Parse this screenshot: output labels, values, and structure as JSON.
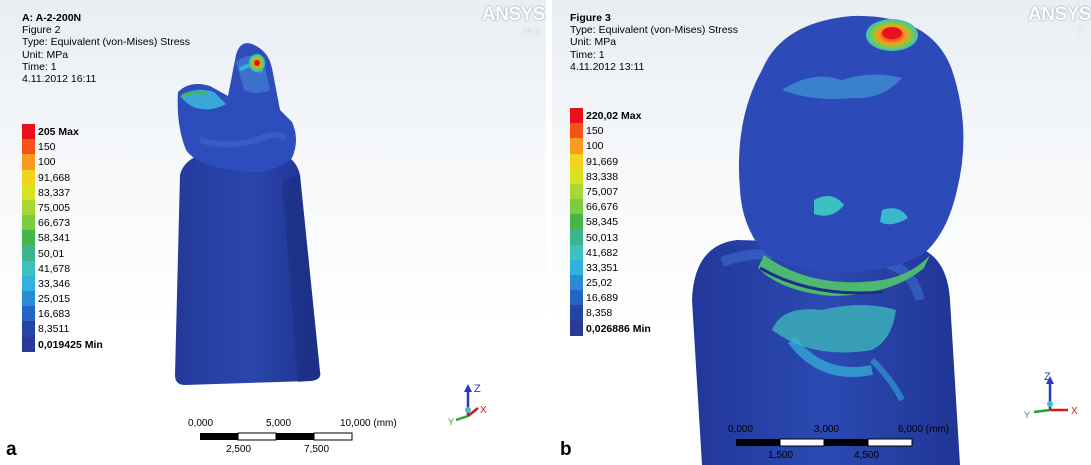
{
  "panels": [
    {
      "panel_label": "a",
      "title": "A: A-2-200N",
      "figure": "Figure 2",
      "type_line": "Type: Equivalent (von-Mises) Stress",
      "unit_line": "Unit: MPa",
      "time_line": "Time: 1",
      "date_line": "4.11.2012 16:11",
      "legend": [
        {
          "label": "205 Max",
          "color": "#e8101a"
        },
        {
          "label": "150",
          "color": "#f4541c"
        },
        {
          "label": "100",
          "color": "#f99b1e"
        },
        {
          "label": "91,668",
          "color": "#f3d41d"
        },
        {
          "label": "83,337",
          "color": "#d8e31f"
        },
        {
          "label": "75,005",
          "color": "#a8d838"
        },
        {
          "label": "66,673",
          "color": "#7ccc3e"
        },
        {
          "label": "58,341",
          "color": "#46b54a"
        },
        {
          "label": "50,01",
          "color": "#3cb58e"
        },
        {
          "label": "41,678",
          "color": "#3ec0c0"
        },
        {
          "label": "33,346",
          "color": "#30b2dc"
        },
        {
          "label": "25,015",
          "color": "#2a8ad6"
        },
        {
          "label": "16,683",
          "color": "#2763c4"
        },
        {
          "label": "8,3511",
          "color": "#2444a6"
        },
        {
          "label": "0,019425 Min",
          "color": "#2a3896"
        }
      ],
      "logo": "ANSYS",
      "logo_version": "14.0",
      "scale_top_labels": [
        "0,000",
        "5,000",
        "10,000 (mm)"
      ],
      "scale_bottom_labels": [
        "2,500",
        "7,500"
      ],
      "axis_labels": {
        "z": "Z",
        "x": "X",
        "y": "Y"
      }
    },
    {
      "panel_label": "b",
      "title": "Figure 3",
      "type_line": "Type: Equivalent (von-Mises) Stress",
      "unit_line": "Unit: MPa",
      "time_line": "Time: 1",
      "date_line": "4.11.2012 13:11",
      "legend": [
        {
          "label": "220,02 Max",
          "color": "#e8101a"
        },
        {
          "label": "150",
          "color": "#f4541c"
        },
        {
          "label": "100",
          "color": "#f99b1e"
        },
        {
          "label": "91,669",
          "color": "#f3d41d"
        },
        {
          "label": "83,338",
          "color": "#d8e31f"
        },
        {
          "label": "75,007",
          "color": "#a8d838"
        },
        {
          "label": "66,676",
          "color": "#7ccc3e"
        },
        {
          "label": "58,345",
          "color": "#46b54a"
        },
        {
          "label": "50,013",
          "color": "#3cb58e"
        },
        {
          "label": "41,682",
          "color": "#3ec0c0"
        },
        {
          "label": "33,351",
          "color": "#30b2dc"
        },
        {
          "label": "25,02",
          "color": "#2a8ad6"
        },
        {
          "label": "16,689",
          "color": "#2763c4"
        },
        {
          "label": "8,358",
          "color": "#2444a6"
        },
        {
          "label": "0,026886 Min",
          "color": "#2a3896"
        }
      ],
      "logo": "ANSYS",
      "logo_version": "1",
      "scale_top_labels": [
        "0,000",
        "3,000",
        "6,000 (mm)"
      ],
      "scale_bottom_labels": [
        "1,500",
        "4,500"
      ],
      "axis_labels": {
        "z": "Z",
        "x": "X",
        "y": "Y"
      }
    }
  ]
}
